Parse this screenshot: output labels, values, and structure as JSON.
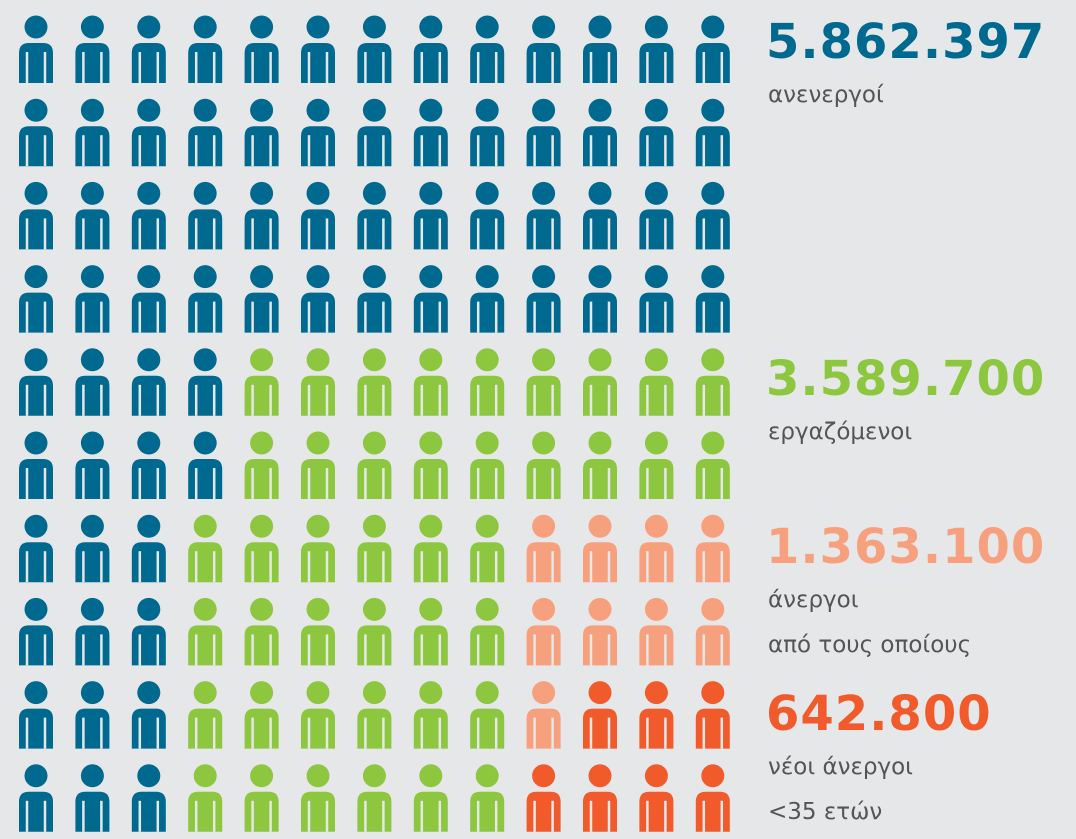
{
  "chart_data": {
    "type": "pictogram",
    "series": [
      {
        "value": 5862397,
        "value_label": "5.862.397",
        "label": [
          "ανενεργοί"
        ],
        "color": "#00698f",
        "icons_per_row": [
          13,
          13,
          13,
          13,
          4,
          4,
          3,
          3,
          3,
          3
        ]
      },
      {
        "value": 3589700,
        "value_label": "3.589.700",
        "label": [
          "εργαζόμενοι"
        ],
        "color": "#8dc63f",
        "icons_per_row": [
          0,
          0,
          0,
          0,
          9,
          9,
          6,
          6,
          6,
          6
        ]
      },
      {
        "value": 1363100,
        "value_label": "1.363.100",
        "label": [
          "άνεργοι",
          "από τους οποίους"
        ],
        "color": "#f7a07e",
        "icons_per_row": [
          0,
          0,
          0,
          0,
          0,
          0,
          4,
          4,
          1,
          0
        ]
      },
      {
        "value": 642800,
        "value_label": "642.800",
        "label": [
          "νέοι άνεργοι",
          "<35 ετών"
        ],
        "color": "#f15a2b",
        "icons_per_row": [
          0,
          0,
          0,
          0,
          0,
          0,
          0,
          0,
          3,
          4
        ]
      }
    ]
  }
}
